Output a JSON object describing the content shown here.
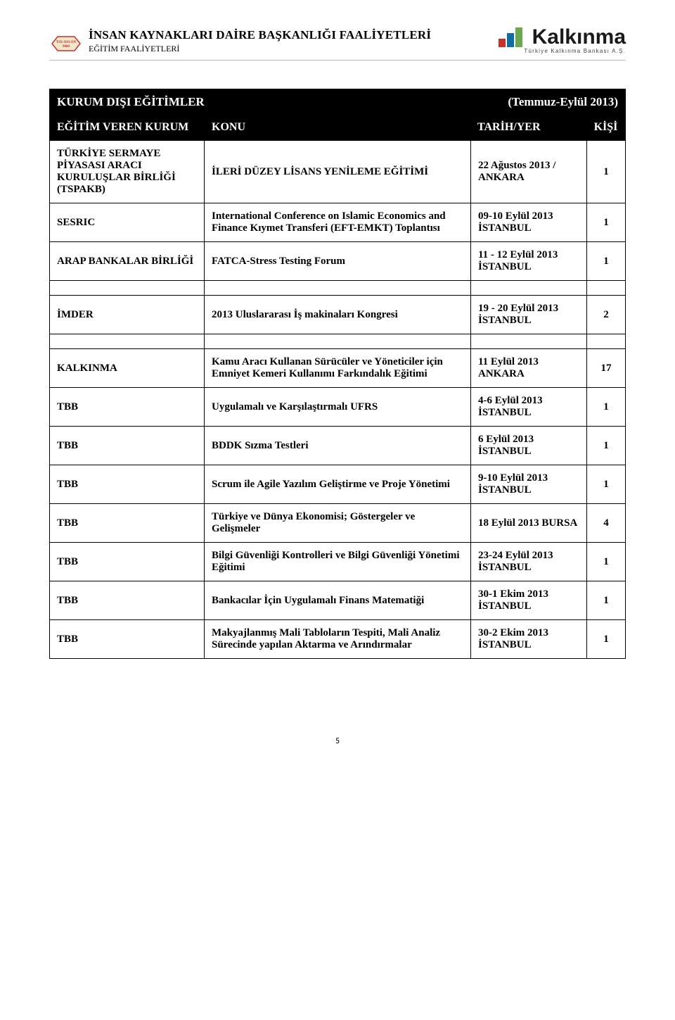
{
  "header": {
    "title_main": "İNSAN KAYNAKLARI DAİRE BAŞKANLIĞI FAALİYETLERİ",
    "title_sub": "EĞİTİM FAALİYETLERİ",
    "logo_text": "Kalkınma",
    "logo_tagline": "Türkiye Kalkınma Bankası A.Ş.",
    "logo_bar_colors": [
      "#c9302c",
      "#0b6fa4",
      "#6aa84f"
    ],
    "badge_border": "#c9302c",
    "badge_fill": "#efe7c8",
    "badge_text_color": "#c9302c"
  },
  "table_title_left": "KURUM DIŞI EĞİTİMLER",
  "table_title_right": "(Temmuz-Eylül 2013)",
  "columns": {
    "c1": "EĞİTİM VEREN KURUM",
    "c2": "KONU",
    "c3": "TARİH/YER",
    "c4": "KİŞİ"
  },
  "rows": [
    {
      "org": "TÜRKİYE SERMAYE PİYASASI ARACI KURULUŞLAR BİRLİĞİ (TSPAKB)",
      "topic": "İLERİ DÜZEY LİSANS YENİLEME EĞİTİMİ",
      "date": "22 Ağustos 2013 / ANKARA",
      "count": "1"
    },
    {
      "org": "SESRIC",
      "topic": "International Conference on Islamic Economics and Finance Kıymet Transferi (EFT-EMKT) Toplantısı",
      "date": "09-10 Eylül 2013 İSTANBUL",
      "count": "1"
    },
    {
      "org": "ARAP BANKALAR BİRLİĞİ",
      "topic": "FATCA-Stress Testing Forum",
      "date": "11 - 12 Eylül 2013 İSTANBUL",
      "count": "1"
    }
  ],
  "rows2": [
    {
      "org": "İMDER",
      "topic": "2013 Uluslararası İş makinaları Kongresi",
      "date": "19 - 20 Eylül  2013 İSTANBUL",
      "count": "2"
    }
  ],
  "rows3": [
    {
      "org": "KALKINMA",
      "topic": "Kamu Aracı Kullanan Sürücüler ve Yöneticiler için Emniyet Kemeri Kullanımı Farkındalık Eğitimi",
      "date": "11 Eylül 2013 ANKARA",
      "count": "17"
    },
    {
      "org": "TBB",
      "topic": "Uygulamalı ve Karşılaştırmalı UFRS",
      "date": "4-6 Eylül 2013 İSTANBUL",
      "count": "1"
    },
    {
      "org": "TBB",
      "topic": "BDDK Sızma Testleri",
      "date": "6 Eylül 2013 İSTANBUL",
      "count": "1"
    },
    {
      "org": "TBB",
      "topic": "Scrum ile Agile Yazılım Geliştirme ve Proje Yönetimi",
      "date": "9-10 Eylül 2013 İSTANBUL",
      "count": "1"
    },
    {
      "org": "TBB",
      "topic": "Türkiye ve Dünya Ekonomisi; Göstergeler ve Gelişmeler",
      "date": "18 Eylül 2013 BURSA",
      "count": "4"
    },
    {
      "org": "TBB",
      "topic": "Bilgi Güvenliği Kontrolleri ve Bilgi Güvenliği Yönetimi Eğitimi",
      "date": "23-24 Eylül 2013 İSTANBUL",
      "count": "1"
    },
    {
      "org": "TBB",
      "topic": "Bankacılar İçin Uygulamalı Finans Matematiği",
      "date": "30-1 Ekim 2013 İSTANBUL",
      "count": "1"
    },
    {
      "org": "TBB",
      "topic": "Makyajlanmış Mali Tabloların Tespiti, Mali Analiz Sürecinde yapılan Aktarma ve Arındırmalar",
      "date": "30-2 Ekim 2013 İSTANBUL",
      "count": "1"
    }
  ],
  "page_number": "5"
}
